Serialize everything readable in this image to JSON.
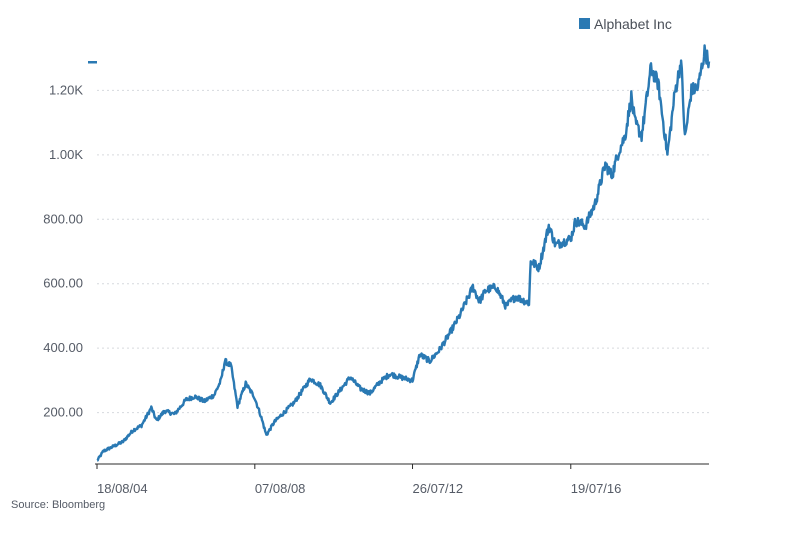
{
  "chart_data": {
    "type": "line",
    "title": "",
    "xlabel": "",
    "ylabel": "",
    "series": [
      {
        "name": "Alphabet Inc",
        "color": "#2a79b3",
        "points": [
          [
            "2004-08-19",
            50
          ],
          [
            "2004-10-15",
            80
          ],
          [
            "2005-01-15",
            95
          ],
          [
            "2005-04-15",
            110
          ],
          [
            "2005-07-15",
            145
          ],
          [
            "2005-10-01",
            160
          ],
          [
            "2005-12-30",
            215
          ],
          [
            "2006-02-15",
            175
          ],
          [
            "2006-05-01",
            205
          ],
          [
            "2006-08-01",
            195
          ],
          [
            "2006-11-15",
            240
          ],
          [
            "2007-02-01",
            250
          ],
          [
            "2007-05-01",
            235
          ],
          [
            "2007-08-01",
            255
          ],
          [
            "2007-10-01",
            300
          ],
          [
            "2007-11-06",
            360
          ],
          [
            "2008-01-01",
            345
          ],
          [
            "2008-03-01",
            220
          ],
          [
            "2008-05-15",
            290
          ],
          [
            "2008-08-01",
            250
          ],
          [
            "2008-10-01",
            190
          ],
          [
            "2008-11-21",
            130
          ],
          [
            "2009-02-01",
            170
          ],
          [
            "2009-05-01",
            200
          ],
          [
            "2009-08-01",
            230
          ],
          [
            "2009-11-01",
            275
          ],
          [
            "2010-01-01",
            305
          ],
          [
            "2010-04-01",
            285
          ],
          [
            "2010-07-01",
            230
          ],
          [
            "2010-10-01",
            270
          ],
          [
            "2011-01-01",
            310
          ],
          [
            "2011-04-01",
            275
          ],
          [
            "2011-07-01",
            260
          ],
          [
            "2011-10-01",
            295
          ],
          [
            "2012-01-01",
            320
          ],
          [
            "2012-04-01",
            310
          ],
          [
            "2012-07-26",
            300
          ],
          [
            "2012-10-01",
            380
          ],
          [
            "2013-01-01",
            360
          ],
          [
            "2013-04-01",
            395
          ],
          [
            "2013-07-01",
            445
          ],
          [
            "2013-10-01",
            500
          ],
          [
            "2014-02-01",
            590
          ],
          [
            "2014-04-01",
            545
          ],
          [
            "2014-06-01",
            580
          ],
          [
            "2014-09-01",
            590
          ],
          [
            "2014-12-01",
            530
          ],
          [
            "2015-03-01",
            560
          ],
          [
            "2015-07-01",
            540
          ],
          [
            "2015-07-17",
            670
          ],
          [
            "2015-10-01",
            650
          ],
          [
            "2015-12-30",
            780
          ],
          [
            "2016-03-01",
            720
          ],
          [
            "2016-07-19",
            740
          ],
          [
            "2016-09-01",
            795
          ],
          [
            "2016-12-01",
            780
          ],
          [
            "2017-03-01",
            850
          ],
          [
            "2017-06-01",
            970
          ],
          [
            "2017-08-01",
            935
          ],
          [
            "2017-10-01",
            1010
          ],
          [
            "2017-12-01",
            1060
          ],
          [
            "2018-01-26",
            1180
          ],
          [
            "2018-03-01",
            1100
          ],
          [
            "2018-05-01",
            1060
          ],
          [
            "2018-07-26",
            1270
          ],
          [
            "2018-10-01",
            1220
          ],
          [
            "2018-12-24",
            1000
          ],
          [
            "2019-03-01",
            1190
          ],
          [
            "2019-04-29",
            1290
          ],
          [
            "2019-06-03",
            1050
          ],
          [
            "2019-08-01",
            1200
          ],
          [
            "2019-10-01",
            1210
          ],
          [
            "2019-12-01",
            1320
          ],
          [
            "2020-01-10",
            1290
          ]
        ]
      }
    ],
    "x_tick_labels": [
      "18/08/04",
      "07/08/08",
      "26/07/12",
      "19/07/16"
    ],
    "y_tick_labels": [
      "200.00",
      "400.00",
      "600.00",
      "800.00",
      "1.00K",
      "1.20K"
    ],
    "y_ticks": [
      200,
      400,
      600,
      800,
      1000,
      1200
    ],
    "ylim": [
      0,
      1400
    ],
    "grid": "horizontal dotted",
    "legend_position": "top-right"
  },
  "source_text": "Source: Bloomberg"
}
